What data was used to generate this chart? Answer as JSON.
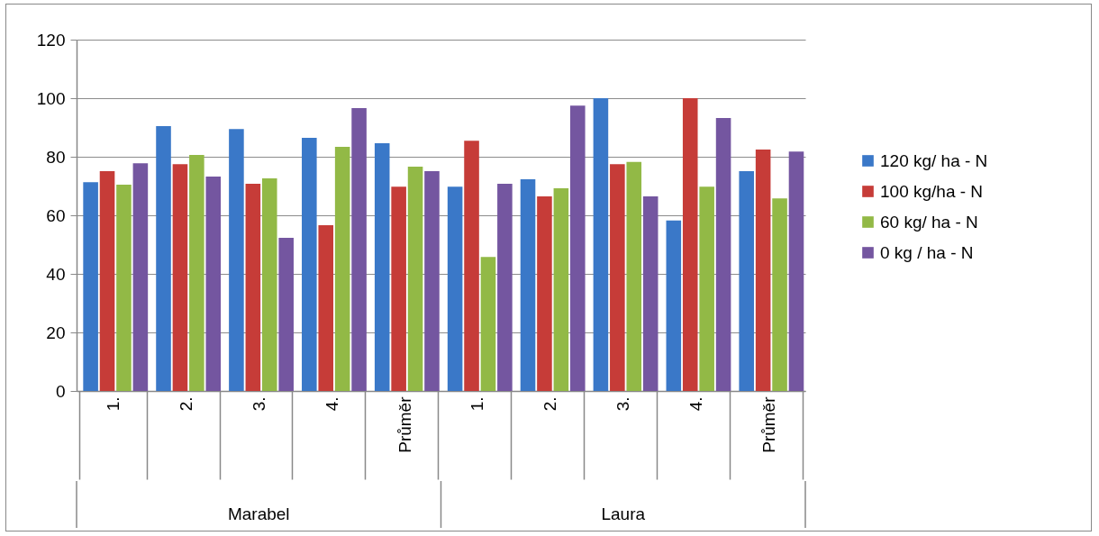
{
  "chart_data": {
    "type": "bar",
    "categories": [
      "1.",
      "2.",
      "3.",
      "4.",
      "Průměr",
      "1.",
      "2.",
      "3.",
      "4.",
      "Průměr"
    ],
    "annotations": [
      "Marabel",
      "Laura"
    ],
    "series": [
      {
        "name": "120 kg/ ha - N",
        "color": "#3a78c8",
        "values": [
          71.3,
          90.5,
          89.5,
          86.5,
          84.6,
          69.8,
          72.3,
          100,
          58.2,
          75.1
        ]
      },
      {
        "name": "100 kg/ha - N",
        "color": "#c63c38",
        "values": [
          75.1,
          77.5,
          70.8,
          56.6,
          69.8,
          85.5,
          66.5,
          77.5,
          100,
          82.5
        ]
      },
      {
        "name": "60 kg/ ha - N",
        "color": "#92b946",
        "values": [
          70.5,
          80.6,
          72.6,
          83.4,
          76.6,
          45.8,
          69.2,
          78.2,
          69.8,
          65.8
        ]
      },
      {
        "name": "0 kg / ha - N",
        "color": "#7456a0",
        "values": [
          77.8,
          73.2,
          52.3,
          96.6,
          75.1,
          70.8,
          97.5,
          66.5,
          93.2,
          81.8
        ]
      }
    ],
    "ylim": [
      0,
      120
    ],
    "yticks": [
      0,
      20,
      40,
      60,
      80,
      100,
      120
    ],
    "grid": "y",
    "legend": "right"
  }
}
